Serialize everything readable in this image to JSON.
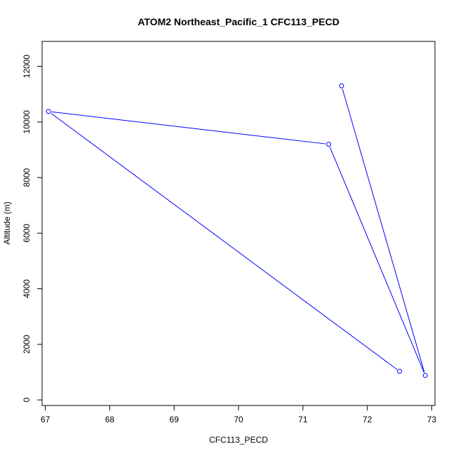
{
  "chart_data": {
    "type": "line",
    "title": "ATOM2 Northeast_Pacific_1 CFC113_PECD",
    "xlabel": "CFC113_PECD",
    "ylabel": "Altitude (m)",
    "xlim": [
      66.95,
      73.05
    ],
    "ylim": [
      -200,
      12900
    ],
    "xticks": [
      67,
      68,
      69,
      70,
      71,
      72,
      73
    ],
    "yticks": [
      0,
      2000,
      4000,
      6000,
      8000,
      10000,
      12000
    ],
    "grid": false,
    "markers": "open-circle",
    "colors": {
      "series": "#0000ff",
      "axes": "#000000"
    },
    "series": [
      {
        "x": [
          71.6,
          72.9,
          71.4,
          67.05,
          72.5
        ],
        "y": [
          11300,
          880,
          9200,
          10380,
          1030
        ]
      }
    ]
  }
}
